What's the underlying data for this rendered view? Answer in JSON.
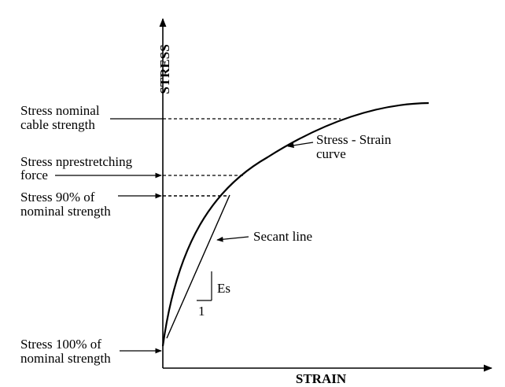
{
  "axes": {
    "y_title": "STRESS",
    "x_title": "STRAIN"
  },
  "labels": {
    "nominal_cable": {
      "line1": "Stress nominal",
      "line2": "cable strength"
    },
    "prestretching": {
      "line1": "Stress nprestretching",
      "line2": "force"
    },
    "stress_90": {
      "line1": "Stress 90% of",
      "line2": "nominal strength"
    },
    "stress_100": {
      "line1": "Stress 100% of",
      "line2": "nominal strength"
    }
  },
  "annotations": {
    "curve": {
      "line1": "Stress - Strain",
      "line2": "curve"
    },
    "secant": "Secant line",
    "modulus": "Es",
    "slope_run": "1"
  },
  "colors": {
    "ink": "#000000",
    "background": "#ffffff"
  }
}
